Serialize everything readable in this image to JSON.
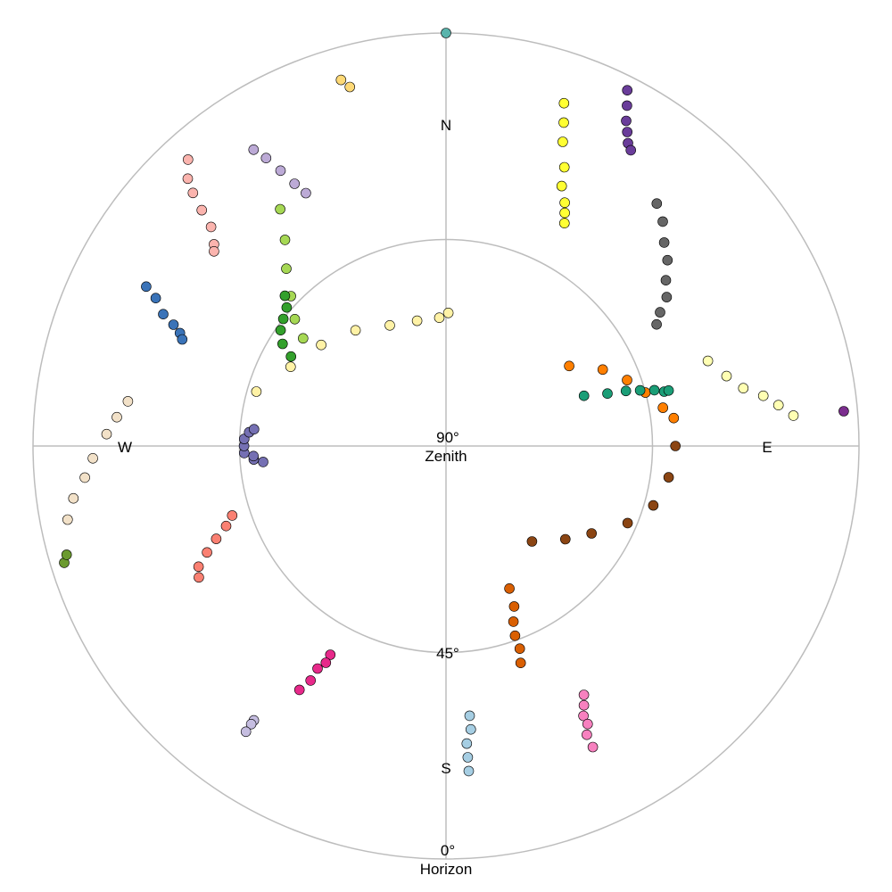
{
  "chart_data": {
    "type": "scatter",
    "projection": "polar-sky",
    "title": "",
    "elevation_range": [
      0,
      90
    ],
    "elevation_rings": [
      0,
      45
    ],
    "labels": {
      "north": "N",
      "south": "S",
      "east": "E",
      "west": "W",
      "zenith_value": "90°",
      "zenith_name": "Zenith",
      "mid_value": "45°",
      "horizon_value": "0°",
      "horizon_name": "Horizon"
    },
    "grid": true,
    "legend": "none",
    "series": [
      {
        "color": "#5ab4ac",
        "points": [
          [
            0,
            0
          ]
        ]
      },
      {
        "color": "#6a3d9a",
        "points": [
          [
            27,
            3
          ],
          [
            28,
            6
          ],
          [
            29,
            9
          ],
          [
            30,
            11
          ],
          [
            31,
            13
          ],
          [
            32,
            14
          ]
        ]
      },
      {
        "color": "#ffff33",
        "points": [
          [
            19,
            11
          ],
          [
            20,
            15
          ],
          [
            21,
            19
          ],
          [
            23,
            24
          ],
          [
            24,
            28
          ],
          [
            26,
            31
          ],
          [
            27,
            33
          ],
          [
            28,
            35
          ]
        ]
      },
      {
        "color": "#666666",
        "points": [
          [
            41,
            20
          ],
          [
            44,
            22
          ],
          [
            47,
            25
          ],
          [
            50,
            27
          ],
          [
            53,
            30
          ],
          [
            56,
            32
          ],
          [
            58,
            35
          ],
          [
            60,
            37
          ]
        ]
      },
      {
        "color": "#fed976",
        "points": [
          [
            344,
            7
          ],
          [
            345,
            9
          ]
        ]
      },
      {
        "color": "#fbb4ae",
        "points": [
          [
            318,
            6
          ],
          [
            316,
            9
          ],
          [
            315,
            12
          ],
          [
            314,
            16
          ],
          [
            313,
            20
          ],
          [
            311,
            23
          ],
          [
            310,
            24
          ]
        ]
      },
      {
        "color": "#bcaad6",
        "points": [
          [
            327,
            13
          ],
          [
            328,
            16
          ],
          [
            329,
            20
          ],
          [
            330,
            24
          ],
          [
            331,
            27
          ]
        ]
      },
      {
        "color": "#3a73b8",
        "points": [
          [
            298,
            16
          ],
          [
            297,
            19
          ],
          [
            295,
            22
          ],
          [
            294,
            25
          ],
          [
            293,
            27
          ],
          [
            292,
            28
          ]
        ]
      },
      {
        "color": "#a6d854",
        "points": [
          [
            325,
            27
          ],
          [
            322,
            33
          ],
          [
            318,
            38
          ],
          [
            314,
            43
          ],
          [
            310,
            47
          ],
          [
            307,
            51
          ]
        ]
      },
      {
        "color": "#f2e1c8",
        "points": [
          [
            259,
            6
          ],
          [
            262,
            8
          ],
          [
            265,
            11
          ],
          [
            268,
            13
          ],
          [
            272,
            16
          ],
          [
            275,
            18
          ],
          [
            278,
            20
          ]
        ]
      },
      {
        "color": "#33a02c",
        "points": [
          [
            300,
            51
          ],
          [
            302,
            48
          ],
          [
            305,
            46
          ],
          [
            308,
            45
          ],
          [
            311,
            44
          ],
          [
            313,
            42
          ]
        ]
      },
      {
        "color": "#fff2a6",
        "points": [
          [
            286,
            47
          ],
          [
            297,
            52
          ],
          [
            309,
            55
          ],
          [
            322,
            58
          ],
          [
            335,
            61
          ],
          [
            347,
            62
          ],
          [
            357,
            62
          ],
          [
            1,
            61
          ]
        ]
      },
      {
        "color": "#ffffb3",
        "points": [
          [
            72,
            30
          ],
          [
            76,
            27
          ],
          [
            79,
            24
          ],
          [
            81,
            20
          ],
          [
            83,
            17
          ],
          [
            85,
            14
          ]
        ]
      },
      {
        "color": "#7b2d8e",
        "points": [
          [
            85,
            3
          ]
        ]
      },
      {
        "color": "#8b4513",
        "points": [
          [
            138,
            62
          ],
          [
            128,
            57
          ],
          [
            121,
            53
          ],
          [
            113,
            47
          ],
          [
            106,
            43
          ],
          [
            98,
            41
          ],
          [
            90,
            40
          ]
        ]
      },
      {
        "color": "#ff7f00",
        "points": [
          [
            57,
            58
          ],
          [
            64,
            52
          ],
          [
            70,
            48
          ],
          [
            75,
            45
          ],
          [
            80,
            42
          ],
          [
            83,
            40
          ]
        ]
      },
      {
        "color": "#1b9e77",
        "points": [
          [
            70,
            58
          ],
          [
            72,
            53
          ],
          [
            73,
            49
          ],
          [
            74,
            46
          ],
          [
            75,
            43
          ],
          [
            76,
            41
          ],
          [
            76,
            40
          ]
        ]
      },
      {
        "color": "#7570b3",
        "points": [
          [
            265,
            50
          ],
          [
            266,
            48
          ],
          [
            267,
            48
          ],
          [
            268,
            46
          ],
          [
            270,
            46
          ],
          [
            272,
            46
          ],
          [
            274,
            47
          ],
          [
            275,
            48
          ]
        ]
      },
      {
        "color": "#fa8072",
        "points": [
          [
            242,
            29
          ],
          [
            244,
            30
          ],
          [
            246,
            33
          ],
          [
            248,
            36
          ],
          [
            250,
            39
          ],
          [
            252,
            41
          ]
        ]
      },
      {
        "color": "#6b9a2f",
        "points": [
          [
            253,
            3
          ],
          [
            254,
            4
          ]
        ]
      },
      {
        "color": "#d95f02",
        "points": [
          [
            156,
            56
          ],
          [
            157,
            52
          ],
          [
            159,
            49
          ],
          [
            160,
            46
          ],
          [
            160,
            43
          ],
          [
            161,
            40
          ]
        ]
      },
      {
        "color": "#e7298a",
        "points": [
          [
            209,
            38
          ],
          [
            209,
            36
          ],
          [
            210,
            34
          ],
          [
            210,
            31
          ],
          [
            211,
            28
          ]
        ]
      },
      {
        "color": "#a6cee3",
        "points": [
          [
            175,
            31
          ],
          [
            175,
            28
          ],
          [
            176,
            25
          ],
          [
            176,
            22
          ],
          [
            176,
            19
          ]
        ]
      },
      {
        "color": "#f781bf",
        "points": [
          [
            151,
            28
          ],
          [
            152,
            26
          ],
          [
            153,
            24
          ],
          [
            153,
            22
          ],
          [
            154,
            20
          ],
          [
            154,
            17
          ]
        ]
      },
      {
        "color": "#c5bde0",
        "points": [
          [
            215,
            17
          ],
          [
            215,
            16
          ],
          [
            215,
            14
          ]
        ]
      }
    ]
  }
}
